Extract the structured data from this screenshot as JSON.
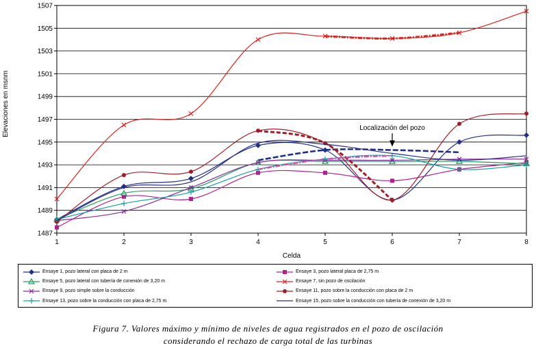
{
  "chart_data": {
    "type": "line",
    "title": "",
    "xlabel": "Celda",
    "ylabel": "Elevaciones en msnm",
    "x": [
      1,
      2,
      3,
      4,
      5,
      6,
      7,
      8
    ],
    "xlim": [
      1,
      8
    ],
    "ylim": [
      1487,
      1507
    ],
    "yticks": [
      1487,
      1489,
      1491,
      1493,
      1495,
      1497,
      1499,
      1501,
      1503,
      1505,
      1507
    ],
    "xticks": [
      1,
      2,
      3,
      4,
      5,
      6,
      7,
      8
    ],
    "annotation": {
      "text": "Localización del pozo",
      "x": 6
    },
    "series": [
      {
        "name": "Ensaye 1, pozo lateral con placa de 2 m",
        "color": "#1f2f8a",
        "marker": "diamond",
        "values": [
          1488.2,
          1491.1,
          1491.8,
          1494.7,
          1494.3,
          1489.9,
          1495.0,
          1495.6
        ],
        "pozo": [
          1493.4,
          1494.3,
          1494.3,
          1494.1
        ]
      },
      {
        "name": "Ensaye 3, pozo lateral placa de 2,75 m",
        "color": "#b0208f",
        "marker": "square",
        "values": [
          1487.5,
          1490.2,
          1490.0,
          1492.3,
          1492.3,
          1491.6,
          1492.6,
          1493.2
        ]
      },
      {
        "name": "Ensaye 5, pozo lateral con tubería de conexión de 3,20 m",
        "color": "#1aa05a",
        "marker": "triangle",
        "values": [
          1488.2,
          1490.5,
          1490.9,
          1493.2,
          1493.3,
          1493.3,
          1493.3,
          1493.1
        ]
      },
      {
        "name": "Ensaye 7, sin pozo de oscilación",
        "color": "#e02020",
        "marker": "x",
        "values": [
          1490.0,
          1496.5,
          1497.5,
          1504.0,
          1504.3,
          1504.1,
          1504.6,
          1506.5
        ]
      },
      {
        "name": "Ensaye 9, pozo simple sobre la conducción",
        "color": "#8a2a9a",
        "marker": "x",
        "values": [
          1488.1,
          1488.9,
          1491.0,
          1493.2,
          1493.4,
          1493.4,
          1493.5,
          1493.5
        ]
      },
      {
        "name": "Ensaye 11, pozo sobre la conducción con placa de 2 m",
        "color": "#a01c28",
        "marker": "dot",
        "values": [
          1488.0,
          1492.1,
          1492.4,
          1496.0,
          1494.9,
          1489.9,
          1496.6,
          1497.5
        ]
      },
      {
        "name": "Ensaye 13, pozo sobre la conducción con placa de 2,75 m",
        "color": "#14a0a0",
        "marker": "plus",
        "values": [
          1488.2,
          1489.6,
          1490.6,
          1492.6,
          1493.5,
          1493.8,
          1492.6,
          1493.0
        ]
      },
      {
        "name": "Ensaye 15, pozo sobre la conducción con tubería de conexión de 3,20 m",
        "color": "#2a2a8a",
        "marker": "none",
        "values": [
          1488.1,
          1491.0,
          1491.5,
          1494.9,
          1494.8,
          1494.0,
          1493.4,
          1493.8
        ]
      }
    ]
  },
  "caption": {
    "line1": "Figura 7. Valores máximo y mínimo de niveles de agua registrados en el pozo de oscilación",
    "line2": "considerando el rechazo de carga total de las turbinas"
  }
}
